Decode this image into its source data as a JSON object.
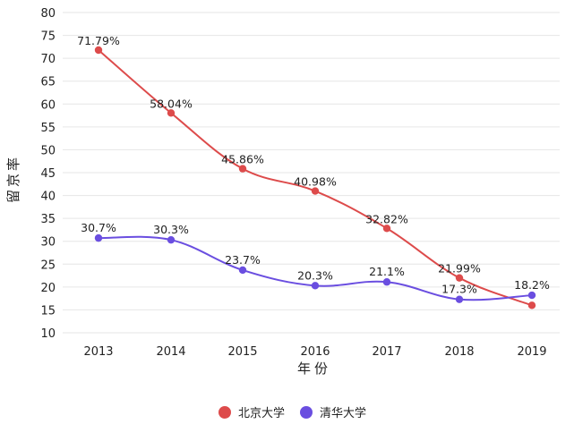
{
  "chart_data": {
    "type": "line",
    "categories": [
      "2013",
      "2014",
      "2015",
      "2016",
      "2017",
      "2018",
      "2019"
    ],
    "y_ticks": [
      "10",
      "15",
      "20",
      "25",
      "30",
      "35",
      "40",
      "45",
      "50",
      "55",
      "60",
      "65",
      "70",
      "75",
      "80"
    ],
    "ylim": [
      10,
      80
    ],
    "xlabel": "年份",
    "ylabel": "留京率",
    "grid": true,
    "legend_position": "bottom",
    "series": [
      {
        "name": "北京大学",
        "color": "#dd4b4b",
        "values": [
          71.79,
          58.04,
          45.86,
          40.98,
          32.82,
          21.99,
          16.0
        ],
        "labels": [
          "71.79%",
          "58.04%",
          "45.86%",
          "40.98%",
          "32.82%",
          "21.99%",
          ""
        ]
      },
      {
        "name": "清华大学",
        "color": "#6a4ee0",
        "values": [
          30.7,
          30.3,
          23.7,
          20.3,
          21.1,
          17.3,
          18.2
        ],
        "labels": [
          "30.7%",
          "30.3%",
          "23.7%",
          "20.3%",
          "21.1%",
          "17.3%",
          "18.2%"
        ]
      }
    ]
  }
}
